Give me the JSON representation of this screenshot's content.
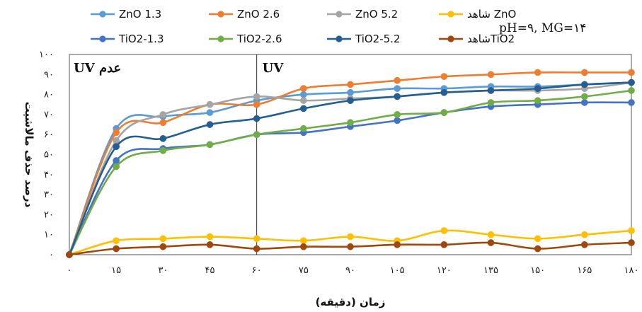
{
  "chart_data": {
    "type": "line",
    "annotation": "pH=۹, MG=۱۴",
    "xlabel": "زمان (دقیقه)",
    "ylabel": "درصد حذف مالاشیت",
    "x": [
      0,
      15,
      30,
      45,
      60,
      75,
      90,
      105,
      120,
      135,
      150,
      165,
      180
    ],
    "x_tick_labels": [
      "۰",
      "۱۵",
      "۳۰",
      "۴۵",
      "۶۰",
      "۷۵",
      "۹۰",
      "۱۰۵",
      "۱۲۰",
      "۱۳۵",
      "۱۵۰",
      "۱۶۵",
      "۱۸۰"
    ],
    "xlim": [
      0,
      180
    ],
    "ylim": [
      0,
      100
    ],
    "y_ticks": [
      0,
      10,
      20,
      30,
      40,
      50,
      60,
      70,
      80,
      90,
      100
    ],
    "y_tick_labels": [
      "۰",
      "۱۰",
      "۲۰",
      "۳۰",
      "۴۰",
      "۵۰",
      "۶۰",
      "۷۰",
      "۸۰",
      "۹۰",
      "۱۰۰"
    ],
    "regions": [
      {
        "label": "UV عدم",
        "x_start": 0,
        "x_end": 60
      },
      {
        "label": "UV",
        "x_start": 60,
        "x_end": 180
      }
    ],
    "divider_x": 60,
    "grid": false,
    "legend_position": "top",
    "series": [
      {
        "name": "ZnO 1.3",
        "color": "#5b9bd5",
        "values": [
          0,
          63,
          69,
          71,
          77,
          80,
          81,
          83,
          83,
          84,
          84,
          85,
          86
        ]
      },
      {
        "name": "ZnO 2.6",
        "color": "#ed7d31",
        "values": [
          0,
          61,
          66,
          75,
          75,
          83,
          85,
          87,
          89,
          90,
          91,
          91,
          91
        ]
      },
      {
        "name": "ZnO 5.2",
        "color": "#a5a5a5",
        "values": [
          0,
          57,
          70,
          75,
          79,
          77,
          78,
          79,
          81,
          82,
          82,
          83,
          86
        ]
      },
      {
        "name": "شاهد ZnO",
        "color": "#ffc000",
        "values": [
          0,
          7,
          8,
          9,
          8,
          7,
          9,
          7,
          12,
          10,
          8,
          10,
          12
        ]
      },
      {
        "name": "TiO2-1.3",
        "color": "#4472c4",
        "values": [
          0,
          47,
          53,
          55,
          60,
          61,
          64,
          67,
          71,
          74,
          75,
          76,
          76
        ]
      },
      {
        "name": "TiO2-2.6",
        "color": "#70ad47",
        "values": [
          0,
          44,
          52,
          55,
          60,
          63,
          66,
          70,
          71,
          76,
          77,
          79,
          82
        ]
      },
      {
        "name": "TiO2-5.2",
        "color": "#255e91",
        "values": [
          0,
          54,
          58,
          65,
          68,
          73,
          77,
          79,
          81,
          82,
          83,
          85,
          86
        ]
      },
      {
        "name": "شاهدTiO2",
        "color": "#9e480e",
        "values": [
          0,
          3,
          4,
          5,
          3,
          4,
          4,
          5,
          5,
          6,
          3,
          5,
          6
        ]
      }
    ]
  }
}
